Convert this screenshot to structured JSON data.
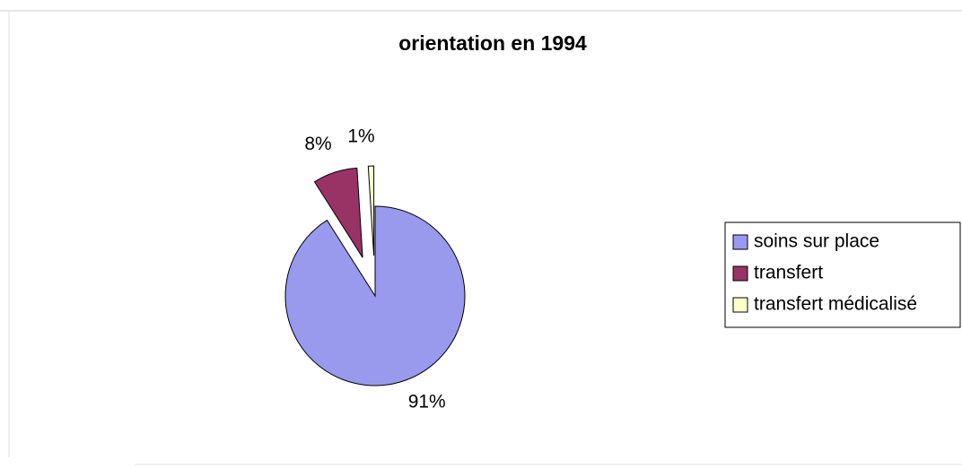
{
  "chart_data": {
    "type": "pie",
    "title": "orientation en 1994",
    "categories": [
      "soins sur place",
      "transfert",
      "transfert médicalisé"
    ],
    "values": [
      91,
      8,
      1
    ],
    "value_labels": [
      "91%",
      "8%",
      "1%"
    ],
    "colors": [
      "#9999ee",
      "#993366",
      "#ffffcc"
    ],
    "exploded": [
      false,
      true,
      true
    ],
    "legend": "right"
  }
}
